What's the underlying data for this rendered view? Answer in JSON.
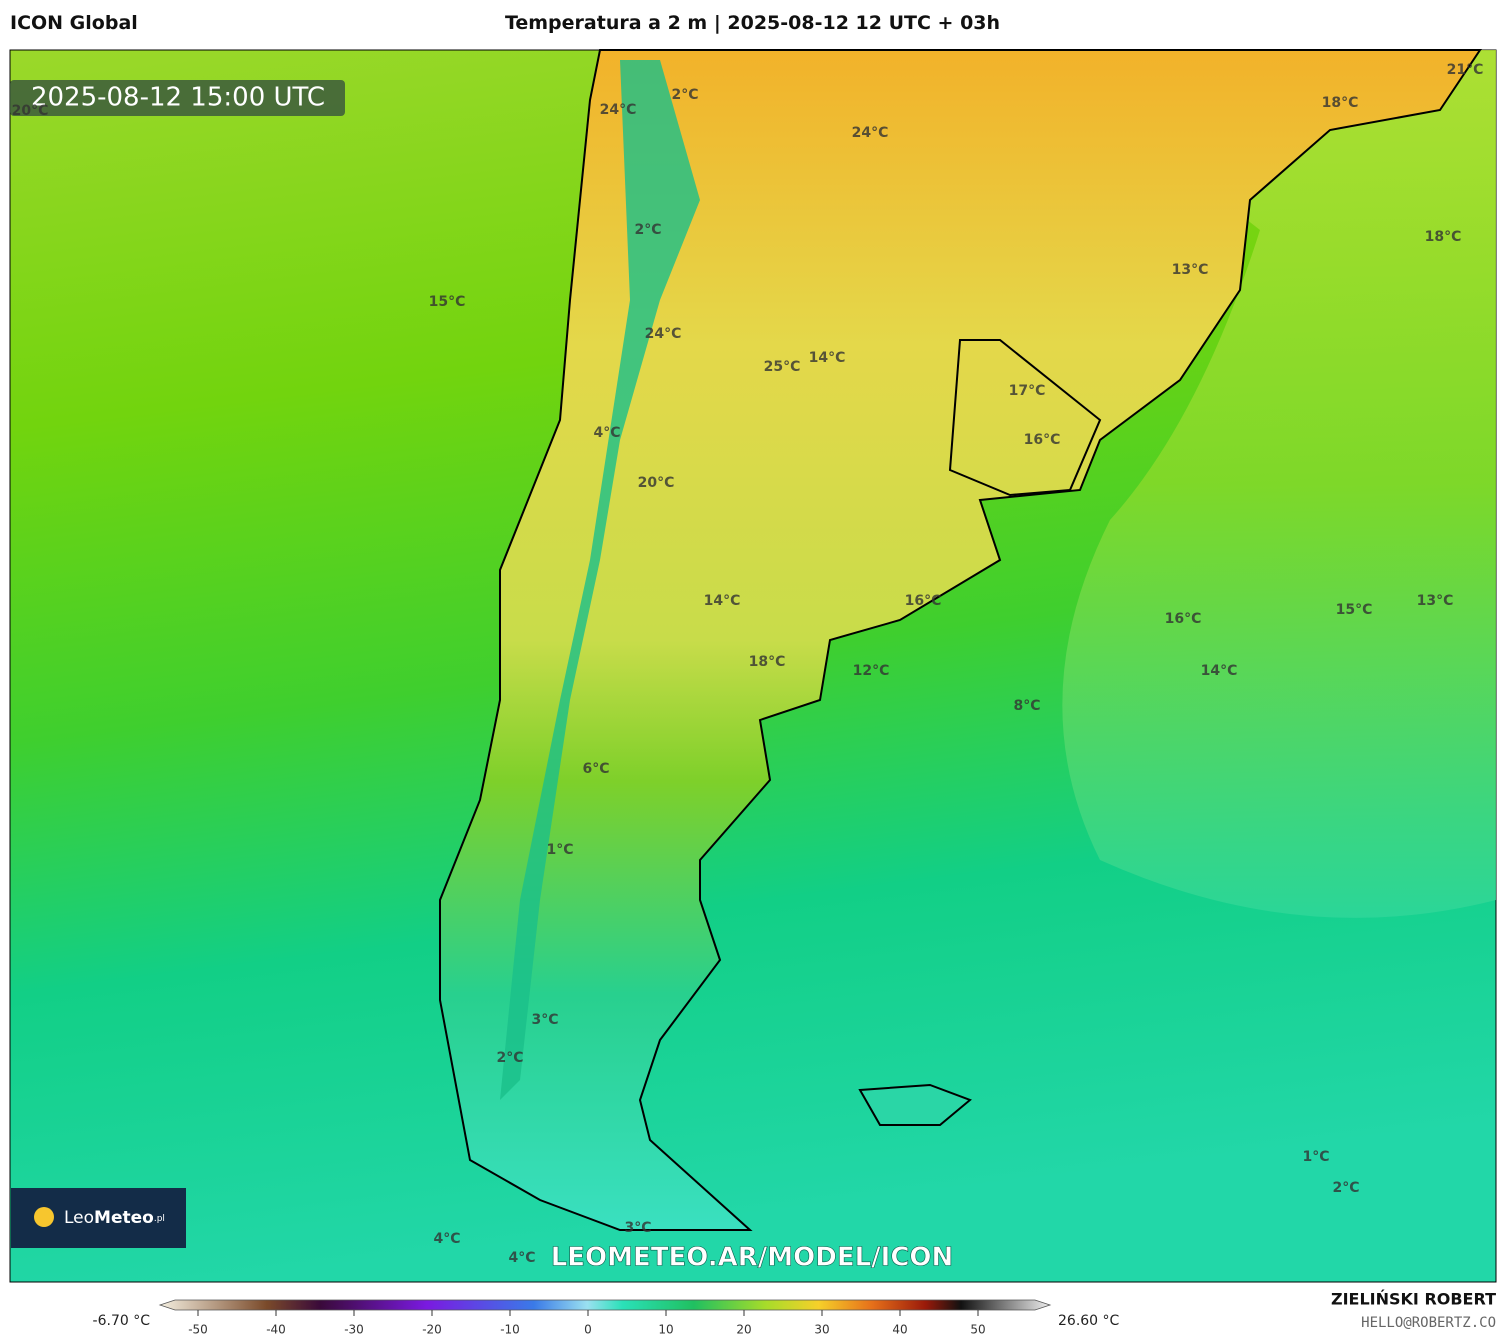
{
  "header": {
    "model": "ICON Global",
    "title": "Temperatura a 2 m | 2025-08-12 12 UTC + 03h"
  },
  "map": {
    "timestamp": "2025-08-12 15:00 UTC",
    "labels": [
      "20°C",
      "24°C",
      "2°C",
      "24°C",
      "21°C",
      "18°C",
      "2°C",
      "18°C",
      "13°C",
      "15°C",
      "24°C",
      "14°C",
      "25°C",
      "17°C",
      "4°C",
      "16°C",
      "20°C",
      "14°C",
      "16°C",
      "13°C",
      "15°C",
      "16°C",
      "18°C",
      "12°C",
      "14°C",
      "8°C",
      "6°C",
      "1°C",
      "3°C",
      "2°C",
      "1°C",
      "2°C",
      "4°C",
      "4°C",
      "3°C"
    ],
    "logo": {
      "brand": "Leo",
      "brand_bold": "Meteo",
      "suffix": ".pl"
    },
    "watermark": "LEOMETEO.AR/MODEL/ICON"
  },
  "colorbar": {
    "min_label": "-6.70 °C",
    "max_label": "26.60 °C",
    "ticks": [
      -50,
      -40,
      -30,
      -20,
      -10,
      0,
      10,
      20,
      30,
      40,
      50
    ]
  },
  "footer": {
    "author": "ZIELIŃSKI ROBERT",
    "email": "HELLO@ROBERTZ.CO"
  }
}
